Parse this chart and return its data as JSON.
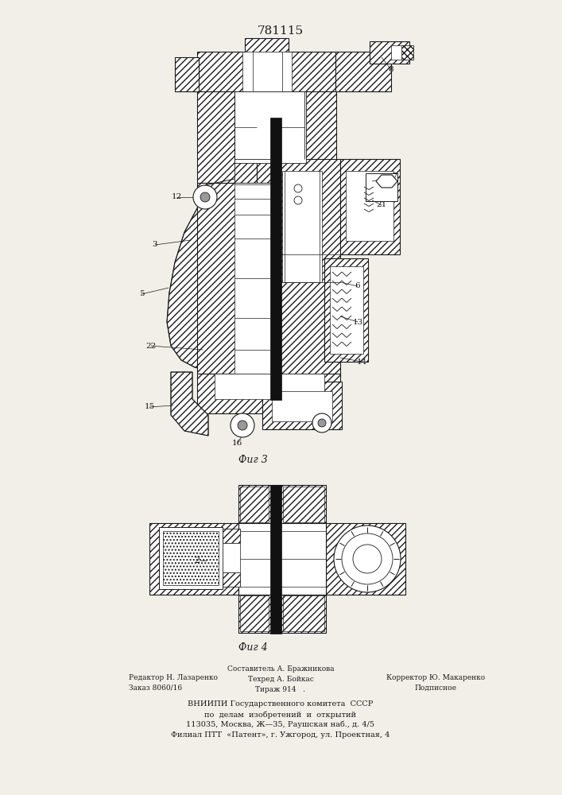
{
  "title": "781115",
  "fig3_label": "Фиг 3",
  "fig4_label": "Фиг 4",
  "bg_color": "#f2efe9",
  "line_color": "#1a1a1a",
  "footer_line1_left": "Редактор Н. Лазаренко",
  "footer_line2_left": "Заказ 8060/16",
  "footer_line0_mid": "Составитель А. Бражникова",
  "footer_line1_mid": "Техред А. Бойкас",
  "footer_line2_mid": "Тираж 914   .",
  "footer_line1_right": "Корректор Ю. Макаренко",
  "footer_line2_right": "Подписное",
  "footer_vniiipi1": "ВНИИПИ Государственного комитета  СССР",
  "footer_vniiipi2": "по  делам  изобретений  и  открытий",
  "footer_vniiipi3": "113035, Москва, Ж—35, Раушская наб., д. 4/5",
  "footer_vniiipi4": "Филиал ПТТ  «Патент», г. Ужгород, ул. Проектная, 4"
}
